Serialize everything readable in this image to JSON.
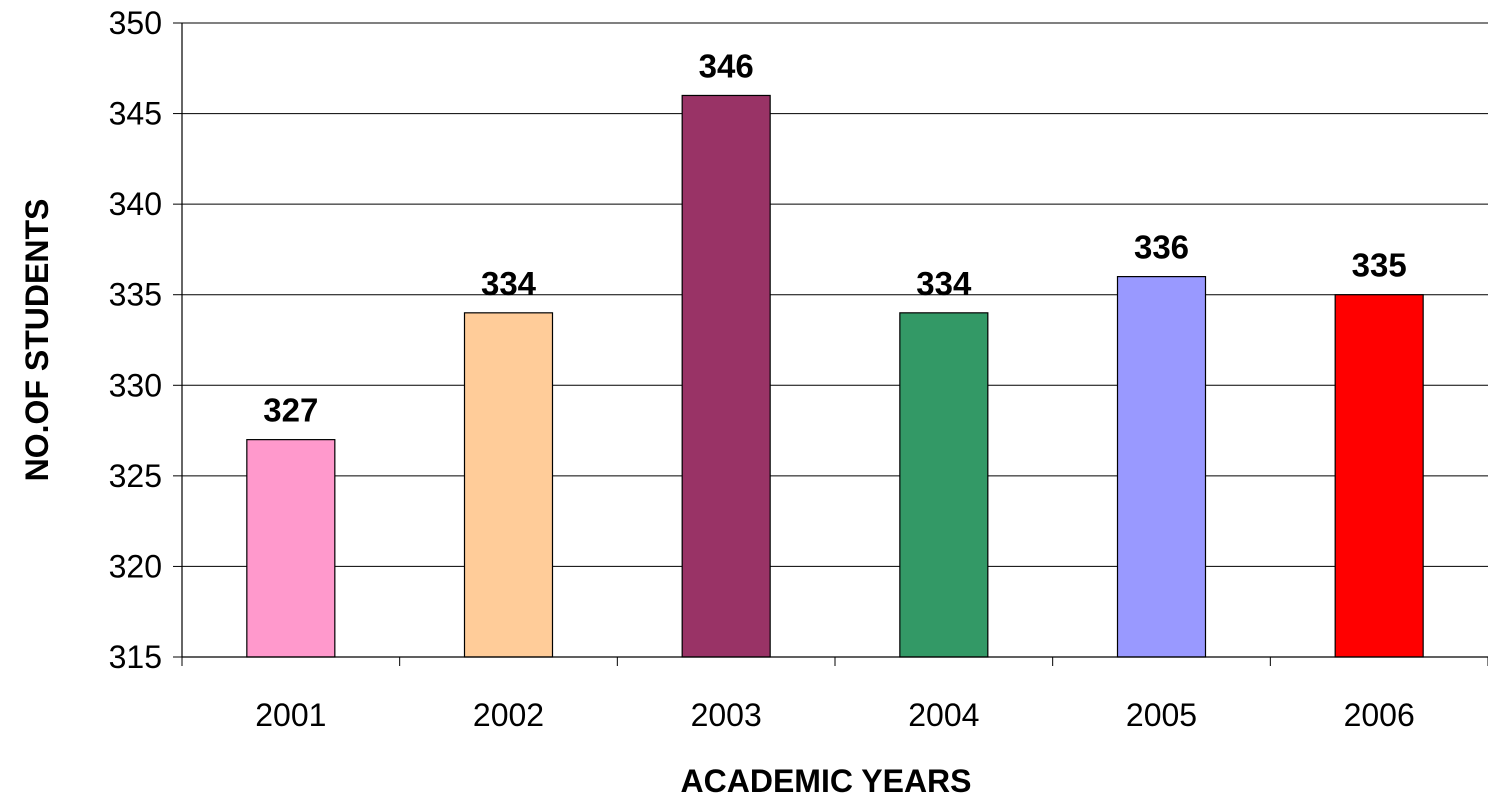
{
  "chart_data": {
    "type": "bar",
    "categories": [
      "2001",
      "2002",
      "2003",
      "2004",
      "2005",
      "2006"
    ],
    "values": [
      327,
      334,
      346,
      334,
      336,
      335
    ],
    "data_labels": [
      "327",
      "334",
      "346",
      "334",
      "336",
      "335"
    ],
    "bar_colors": [
      "#FF99CC",
      "#FFCC99",
      "#993366",
      "#339966",
      "#9999FF",
      "#FF0000"
    ],
    "xlabel": "ACADEMIC YEARS",
    "ylabel": "NO.OF STUDENTS",
    "ylim": [
      315,
      350
    ],
    "yticks": [
      315,
      320,
      325,
      330,
      335,
      340,
      345,
      350
    ],
    "ytick_labels": [
      "315",
      "320",
      "325",
      "330",
      "335",
      "340",
      "345",
      "350"
    ],
    "grid": true,
    "legend": "none"
  }
}
